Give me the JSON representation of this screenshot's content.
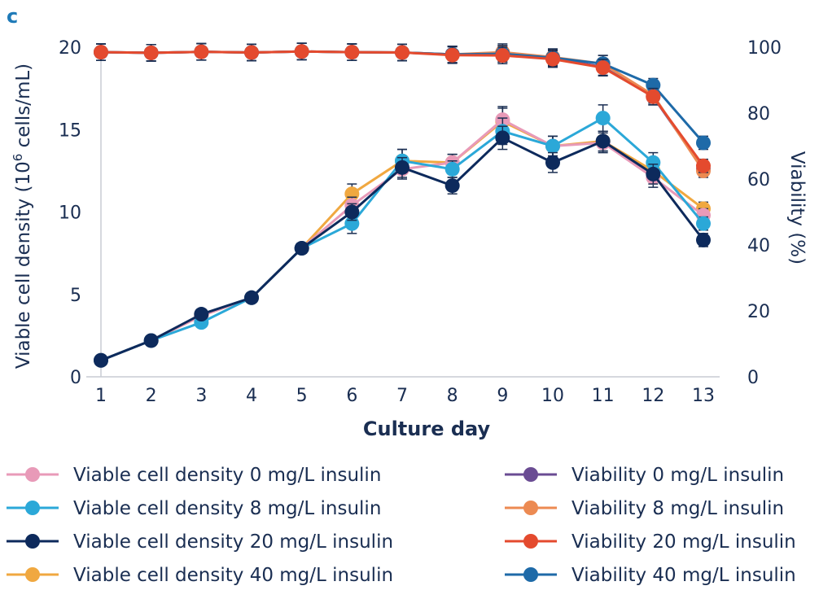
{
  "chart_data": {
    "type": "line",
    "panel_label": "c",
    "title": "",
    "xlabel": "Culture day",
    "ylabel_left_main": "Viable cell density (10",
    "ylabel_left_sup": "6",
    "ylabel_left_tail": " cells/mL)",
    "ylabel_right": "Viability (%)",
    "x": [
      1,
      2,
      3,
      4,
      5,
      6,
      7,
      8,
      9,
      10,
      11,
      12,
      13
    ],
    "x_tick_labels": [
      "1",
      "2",
      "3",
      "4",
      "5",
      "6",
      "7",
      "8",
      "9",
      "10",
      "11",
      "12",
      "13"
    ],
    "ylim_left": [
      0,
      20
    ],
    "y_ticks_left": [
      "0",
      "5",
      "10",
      "15",
      "20"
    ],
    "ylim_right": [
      0,
      100
    ],
    "y_ticks_right": [
      "0",
      "20",
      "40",
      "60",
      "80",
      "100"
    ],
    "series": [
      {
        "name": "Viable cell density 0 mg/L insulin",
        "axis": "left",
        "color": "#e89ab8",
        "values": [
          1.0,
          2.2,
          3.7,
          4.8,
          7.8,
          10.4,
          12.6,
          13.0,
          15.6,
          14.0,
          14.2,
          12.1,
          9.8
        ],
        "errors": [
          0,
          0,
          0,
          0,
          0.3,
          0.5,
          0.6,
          0.5,
          0.8,
          0.6,
          0.6,
          0.6,
          0.4
        ]
      },
      {
        "name": "Viable cell density 8 mg/L insulin",
        "axis": "left",
        "color": "#2ba8d8",
        "values": [
          1.0,
          2.2,
          3.3,
          4.8,
          7.8,
          9.3,
          13.1,
          12.6,
          14.9,
          14.0,
          15.7,
          13.0,
          9.3
        ],
        "errors": [
          0,
          0,
          0,
          0,
          0.3,
          0.6,
          0.7,
          0.5,
          0.8,
          0.6,
          0.8,
          0.6,
          0.4
        ]
      },
      {
        "name": "Viable cell density 20 mg/L insulin",
        "axis": "left",
        "color": "#0d2a5c",
        "values": [
          1.0,
          2.2,
          3.8,
          4.8,
          7.8,
          10.0,
          12.7,
          11.6,
          14.5,
          13.0,
          14.3,
          12.3,
          8.3
        ],
        "errors": [
          0,
          0,
          0,
          0,
          0.3,
          0.5,
          0.6,
          0.5,
          0.7,
          0.6,
          0.6,
          0.6,
          0.4
        ]
      },
      {
        "name": "Viable cell density 40 mg/L insulin",
        "axis": "left",
        "color": "#f0a840",
        "values": [
          1.0,
          2.2,
          3.7,
          4.8,
          7.8,
          11.1,
          13.1,
          13.0,
          15.5,
          14.0,
          14.3,
          12.5,
          10.2
        ],
        "errors": [
          0,
          0,
          0,
          0,
          0.3,
          0.6,
          0.7,
          0.5,
          0.8,
          0.6,
          0.6,
          0.6,
          0.4
        ]
      },
      {
        "name": "Viability 0 mg/L insulin",
        "axis": "right",
        "color": "#6a4c93",
        "values": [
          98.5,
          98.3,
          98.6,
          98.4,
          98.7,
          98.5,
          98.4,
          97.8,
          98.0,
          96.6,
          94.0,
          85.0,
          63.0
        ],
        "errors": [
          2.5,
          2.5,
          2.5,
          2.5,
          2.5,
          2.5,
          2.5,
          2.5,
          2.5,
          2.5,
          2.5,
          2.5,
          2.0
        ]
      },
      {
        "name": "Viability 8 mg/L insulin",
        "axis": "right",
        "color": "#ec8a52",
        "values": [
          98.5,
          98.3,
          98.6,
          98.4,
          98.7,
          98.5,
          98.4,
          97.8,
          98.5,
          97.0,
          95.0,
          85.5,
          62.5
        ],
        "errors": [
          2.5,
          2.5,
          2.5,
          2.5,
          2.5,
          2.5,
          2.5,
          2.5,
          2.5,
          2.5,
          2.5,
          2.5,
          2.0
        ]
      },
      {
        "name": "Viability 20 mg/L insulin",
        "axis": "right",
        "color": "#e44a2e",
        "values": [
          98.5,
          98.3,
          98.6,
          98.4,
          98.7,
          98.5,
          98.4,
          97.6,
          97.5,
          96.4,
          93.8,
          85.0,
          64.0
        ],
        "errors": [
          2.5,
          2.5,
          2.5,
          2.5,
          2.5,
          2.5,
          2.5,
          2.5,
          2.5,
          2.5,
          2.5,
          2.5,
          2.0
        ]
      },
      {
        "name": "Viability 40 mg/L insulin",
        "axis": "right",
        "color": "#1e6aa8",
        "values": [
          98.5,
          98.3,
          98.6,
          98.4,
          98.7,
          98.5,
          98.4,
          97.8,
          98.0,
          96.8,
          95.0,
          88.5,
          71.0
        ],
        "errors": [
          2.5,
          2.5,
          2.5,
          2.5,
          2.5,
          2.5,
          2.5,
          2.5,
          2.5,
          2.5,
          2.5,
          2.0,
          2.0
        ]
      }
    ],
    "legend_position": "bottom",
    "grid": false
  }
}
